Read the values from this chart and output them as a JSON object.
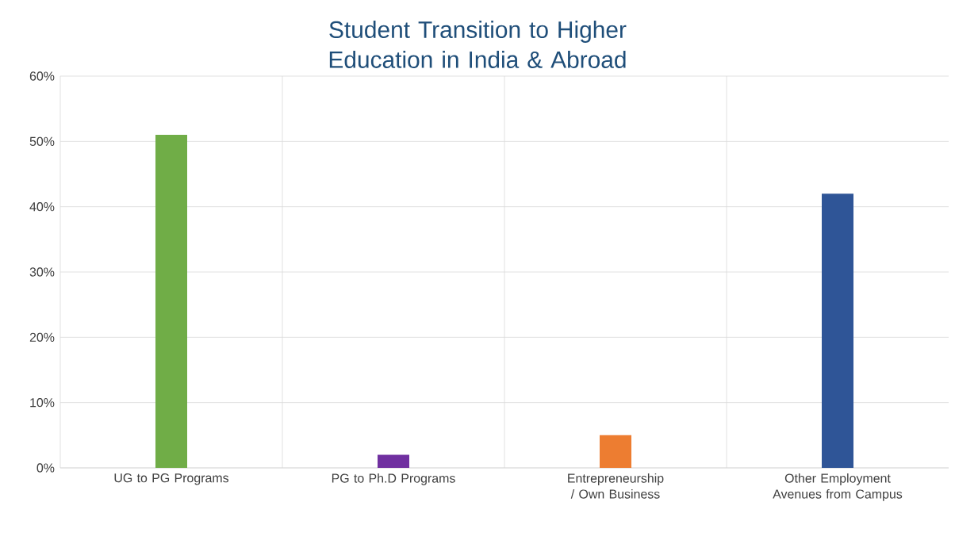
{
  "chart_data": {
    "type": "bar",
    "title": "Student Transition to Higher Education in India & Abroad",
    "categories": [
      "UG to PG Programs",
      "PG to Ph.D Programs",
      "Entrepreneurship / Own Business",
      "Other Employment Avenues from Campus"
    ],
    "values": [
      51,
      2,
      5,
      42
    ],
    "colors": [
      "#70ad47",
      "#7030a0",
      "#ed7d31",
      "#2f5597"
    ],
    "ylim": [
      0,
      60
    ],
    "yticks": [
      {
        "value": 0,
        "label": "0%"
      },
      {
        "value": 10,
        "label": "10%"
      },
      {
        "value": 20,
        "label": "20%"
      },
      {
        "value": 30,
        "label": "30%"
      },
      {
        "value": 40,
        "label": "40%"
      },
      {
        "value": 50,
        "label": "50%"
      },
      {
        "value": 60,
        "label": "60%"
      }
    ],
    "grid": true
  }
}
